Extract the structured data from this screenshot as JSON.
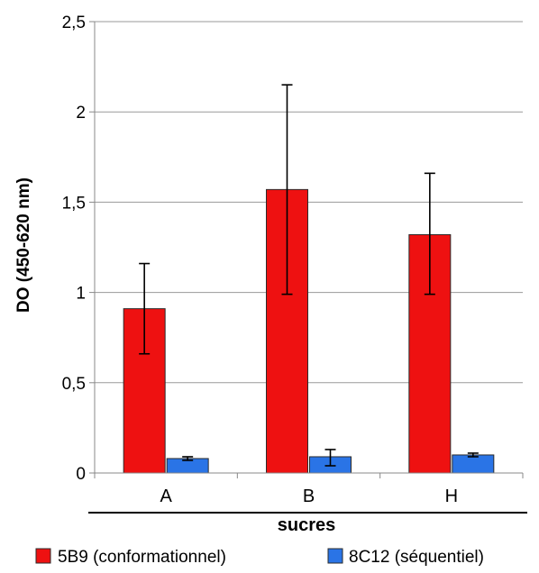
{
  "chart_data": {
    "type": "bar",
    "title": "",
    "xlabel": "sucres",
    "ylabel": "DO (450-620 nm)",
    "categories": [
      "A",
      "B",
      "H"
    ],
    "ylim": [
      0,
      2.5
    ],
    "yticks": [
      0,
      0.5,
      1,
      1.5,
      2,
      2.5
    ],
    "ytick_labels": [
      "0",
      "0,5",
      "1",
      "1,5",
      "2",
      "2,5"
    ],
    "grid": true,
    "legend_position": "bottom",
    "series": [
      {
        "name": "5B9 (conformationnel)",
        "color": "#ee1111",
        "values": [
          0.91,
          1.57,
          1.32
        ],
        "error_low": [
          0.66,
          0.99,
          0.99
        ],
        "error_high": [
          1.16,
          2.15,
          1.66
        ]
      },
      {
        "name": "8C12 (séquentiel)",
        "color": "#2a74e6",
        "values": [
          0.08,
          0.09,
          0.1
        ],
        "error_low": [
          0.07,
          0.04,
          0.09
        ],
        "error_high": [
          0.09,
          0.13,
          0.11
        ]
      }
    ]
  }
}
